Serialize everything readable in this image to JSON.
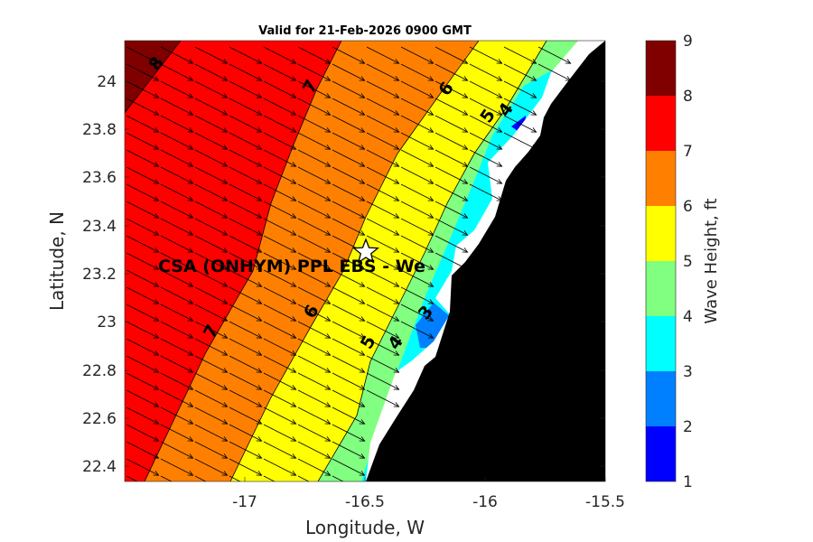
{
  "title": "Valid for 21-Feb-2026 0900 GMT",
  "x_axis": {
    "label": "Longitude, W",
    "ticks": [
      "-17",
      "-16.5",
      "-16",
      "-15.5"
    ]
  },
  "y_axis": {
    "label": "Latitude, N",
    "ticks": [
      "22.4",
      "22.6",
      "22.8",
      "23",
      "23.2",
      "23.4",
      "23.6",
      "23.8",
      "24"
    ]
  },
  "colorbar": {
    "label": "Wave Height, ft",
    "ticks": [
      "1",
      "2",
      "3",
      "4",
      "5",
      "6",
      "7",
      "8",
      "9"
    ],
    "colors": [
      "#0000ff",
      "#0080ff",
      "#00ffff",
      "#80ff80",
      "#ffff00",
      "#ff8000",
      "#ff0000",
      "#800000"
    ]
  },
  "site_label": "CSA (ONHYM) PPL EBS  - We",
  "contour_labels": [
    "8",
    "7",
    "7",
    "6",
    "6",
    "5",
    "5",
    "4",
    "4",
    "3"
  ],
  "colors": {
    "land": "#000000",
    "no_data": "#ffffff"
  },
  "chart_data": {
    "type": "heatmap",
    "title": "Valid for 21-Feb-2026 0900 GMT",
    "xlabel": "Longitude, W",
    "ylabel": "Latitude, N",
    "xlim": [
      -17.5,
      -15.5
    ],
    "ylim": [
      22.33,
      24.17
    ],
    "colorbar_range": [
      1,
      9
    ],
    "site": {
      "lon": -16.5,
      "lat": 23.3
    },
    "overlay": "wave direction arrows pointing southeast"
  }
}
